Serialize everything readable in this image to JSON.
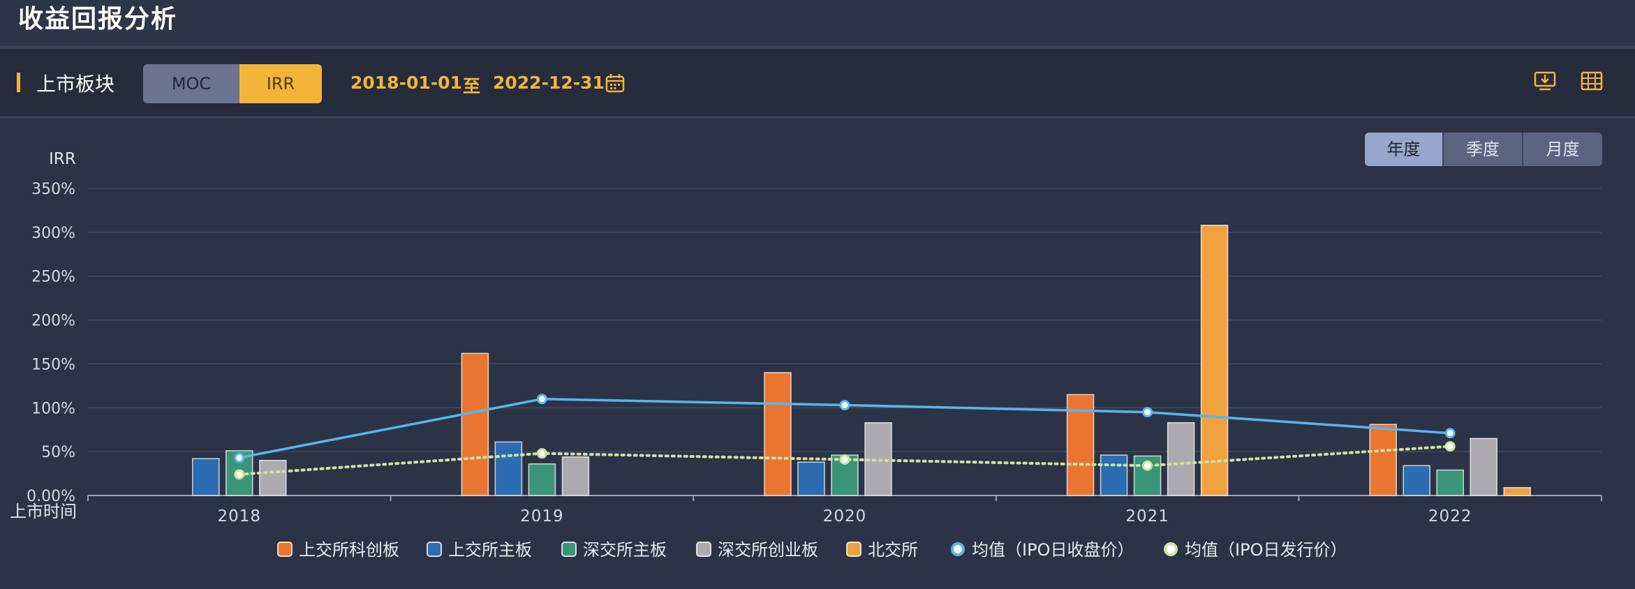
{
  "header": {
    "title": "收益回报分析"
  },
  "toolbar": {
    "section_label": "上市板块",
    "metric_options": [
      "MOC",
      "IRR"
    ],
    "selected_metric": "IRR",
    "date_start": "2018-01-01",
    "date_separator": "至",
    "date_end": "2022-12-31",
    "accent_color": "#f2b53a",
    "icons": [
      "calendar-icon",
      "download-icon",
      "table-icon"
    ]
  },
  "period_tabs": {
    "items": [
      "年度",
      "季度",
      "月度"
    ],
    "selected": "年度"
  },
  "chart_data": {
    "type": "bar",
    "title": "",
    "ylabel": "IRR",
    "xlabel": "上市时间",
    "categories": [
      "2018",
      "2019",
      "2020",
      "2021",
      "2022"
    ],
    "ylim": [
      0,
      350
    ],
    "yticks": [
      "0.00%",
      "50%",
      "100%",
      "150%",
      "200%",
      "250%",
      "300%",
      "350%"
    ],
    "grid": true,
    "legend_position": "bottom",
    "series": [
      {
        "name": "上交所科创板",
        "kind": "bar",
        "color": "#ea7530",
        "values": [
          null,
          162,
          140,
          115,
          81
        ]
      },
      {
        "name": "上交所主板",
        "kind": "bar",
        "color": "#2c6cb0",
        "values": [
          42,
          61,
          38,
          46,
          34
        ]
      },
      {
        "name": "深交所主板",
        "kind": "bar",
        "color": "#3a9478",
        "values": [
          51,
          36,
          46,
          45,
          29
        ]
      },
      {
        "name": "深交所创业板",
        "kind": "bar",
        "color": "#acaab0",
        "values": [
          40,
          44,
          83,
          83,
          65
        ]
      },
      {
        "name": "北交所",
        "kind": "bar",
        "color": "#f0a23f",
        "values": [
          null,
          null,
          null,
          308,
          9
        ]
      },
      {
        "name": "均值（IPO日收盘价）",
        "kind": "line",
        "color": "#58b6ec",
        "values": [
          43,
          110,
          103,
          95,
          71
        ]
      },
      {
        "name": "均值（IPO日发行价）",
        "kind": "dotted-line",
        "color": "#cfe1a0",
        "values": [
          24,
          48,
          41,
          34,
          56
        ]
      }
    ]
  }
}
